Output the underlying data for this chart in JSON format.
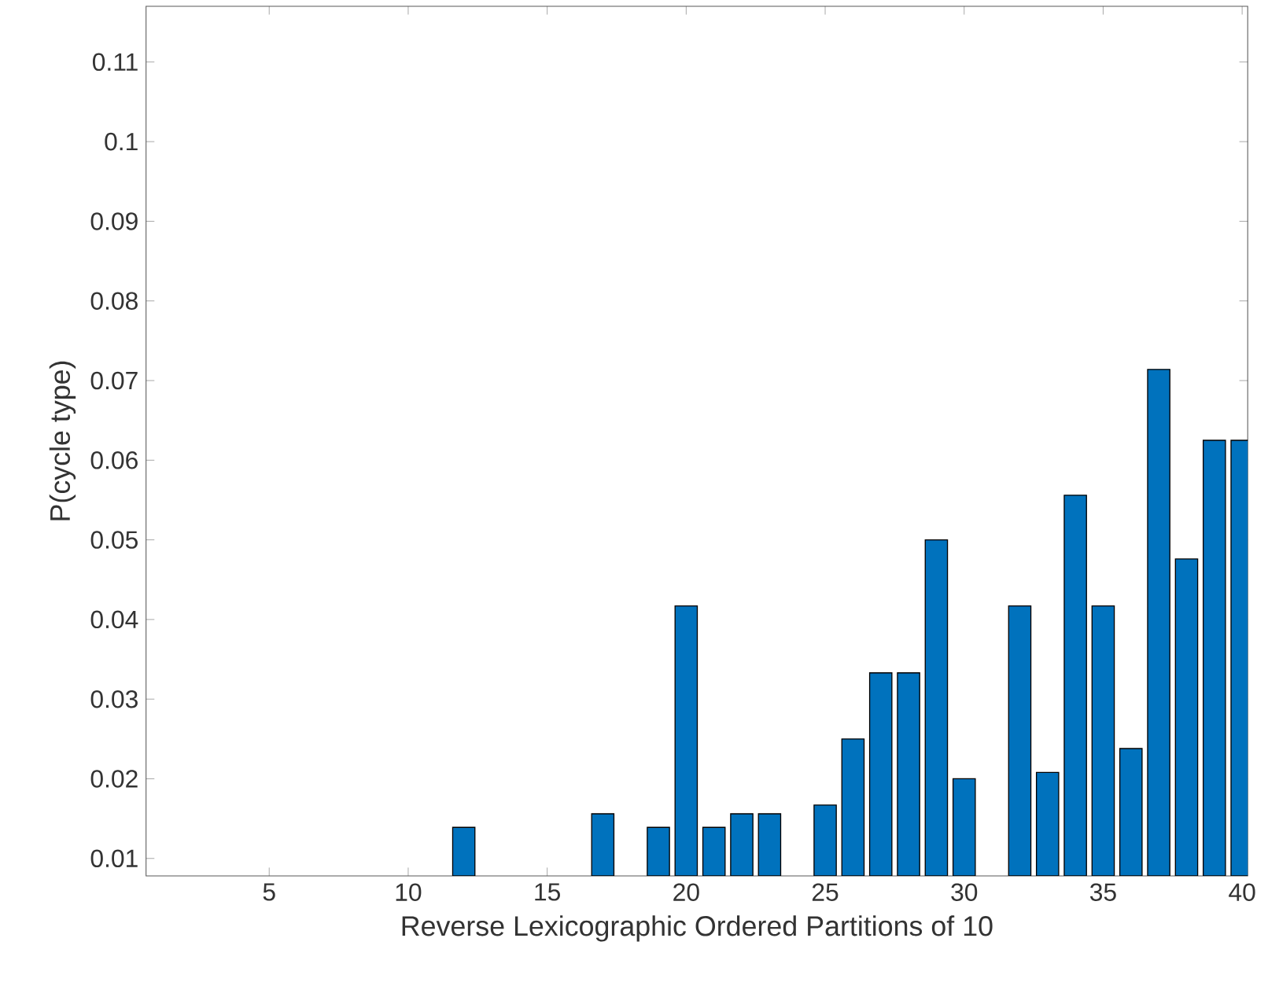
{
  "chart_data": {
    "type": "bar",
    "xlabel": "Reverse Lexicographic Ordered Partitions of 10",
    "ylabel": "P(cycle type)",
    "x": [
      12,
      17,
      19,
      20,
      21,
      22,
      23,
      25,
      26,
      27,
      28,
      29,
      30,
      32,
      33,
      34,
      35,
      36,
      37,
      38,
      39,
      40
    ],
    "values": [
      0.0139,
      0.0156,
      0.0139,
      0.0417,
      0.0139,
      0.0156,
      0.0156,
      0.0167,
      0.025,
      0.0333,
      0.0333,
      0.05,
      0.02,
      0.0417,
      0.0208,
      0.0556,
      0.0417,
      0.0238,
      0.0714,
      0.0476,
      0.0625,
      0.0625
    ],
    "color": "#0072bd",
    "xlim": [
      0.57,
      40.2
    ],
    "ylim": [
      0.0078,
      0.117
    ],
    "xticks": [
      5,
      10,
      15,
      20,
      25,
      30,
      35,
      40
    ],
    "yticks": [
      0.01,
      0.02,
      0.03,
      0.04,
      0.05,
      0.06,
      0.07,
      0.08,
      0.09,
      0.1,
      0.11
    ],
    "grid": false
  }
}
